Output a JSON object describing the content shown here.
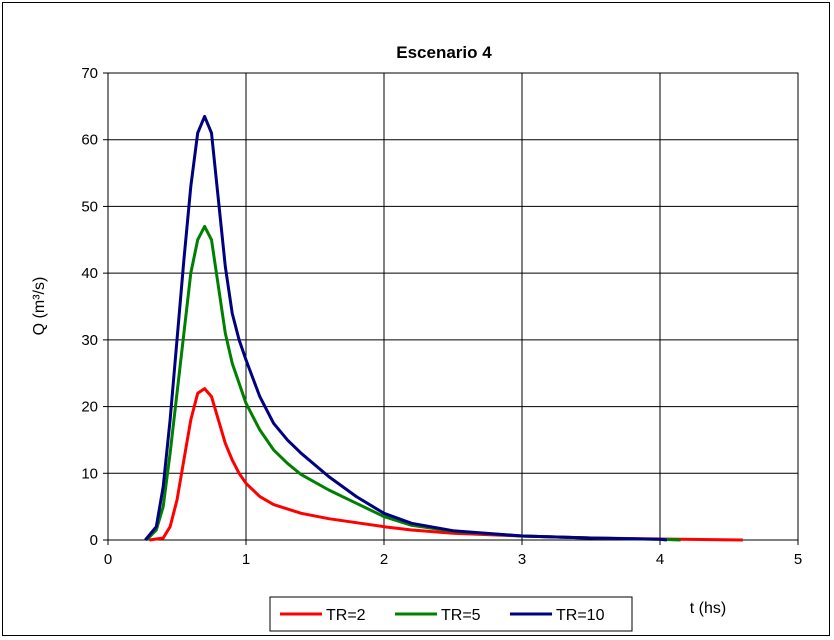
{
  "chart_data": {
    "type": "line",
    "title": "Escenario 4",
    "xlabel": "t (hs)",
    "ylabel": "Q (m³/s)",
    "xlim": [
      0,
      5
    ],
    "ylim": [
      0,
      70
    ],
    "x_ticks": [
      "0",
      "1",
      "2",
      "3",
      "4",
      "5"
    ],
    "y_ticks": [
      "0",
      "10",
      "20",
      "30",
      "40",
      "50",
      "60",
      "70"
    ],
    "grid": true,
    "legend_position": "bottom",
    "series": [
      {
        "name": "TR=2",
        "color": "#ff0000",
        "points": [
          [
            0.3,
            0
          ],
          [
            0.4,
            0.3
          ],
          [
            0.45,
            2
          ],
          [
            0.5,
            6
          ],
          [
            0.55,
            12
          ],
          [
            0.6,
            18
          ],
          [
            0.65,
            22
          ],
          [
            0.7,
            22.7
          ],
          [
            0.75,
            21.5
          ],
          [
            0.8,
            18
          ],
          [
            0.85,
            14.5
          ],
          [
            0.9,
            12
          ],
          [
            0.95,
            10
          ],
          [
            1.0,
            8.5
          ],
          [
            1.1,
            6.5
          ],
          [
            1.2,
            5.3
          ],
          [
            1.4,
            4
          ],
          [
            1.6,
            3.2
          ],
          [
            1.8,
            2.6
          ],
          [
            2.0,
            2
          ],
          [
            2.2,
            1.5
          ],
          [
            2.5,
            1
          ],
          [
            3.0,
            0.6
          ],
          [
            3.5,
            0.3
          ],
          [
            4.0,
            0.15
          ],
          [
            4.6,
            0
          ]
        ]
      },
      {
        "name": "TR=5",
        "color": "#008000",
        "points": [
          [
            0.28,
            0
          ],
          [
            0.35,
            1.5
          ],
          [
            0.4,
            5
          ],
          [
            0.45,
            13
          ],
          [
            0.5,
            22
          ],
          [
            0.55,
            31
          ],
          [
            0.6,
            40
          ],
          [
            0.65,
            45
          ],
          [
            0.7,
            47
          ],
          [
            0.75,
            45
          ],
          [
            0.8,
            38
          ],
          [
            0.85,
            31
          ],
          [
            0.9,
            26.5
          ],
          [
            0.95,
            23.5
          ],
          [
            1.0,
            20.5
          ],
          [
            1.1,
            16.5
          ],
          [
            1.2,
            13.5
          ],
          [
            1.3,
            11.5
          ],
          [
            1.4,
            9.8
          ],
          [
            1.6,
            7.5
          ],
          [
            1.8,
            5.5
          ],
          [
            2.0,
            3.5
          ],
          [
            2.2,
            2.2
          ],
          [
            2.5,
            1.3
          ],
          [
            3.0,
            0.6
          ],
          [
            3.5,
            0.3
          ],
          [
            4.0,
            0.1
          ],
          [
            4.15,
            0
          ]
        ]
      },
      {
        "name": "TR=10",
        "color": "#000080",
        "points": [
          [
            0.27,
            0
          ],
          [
            0.35,
            2
          ],
          [
            0.4,
            8
          ],
          [
            0.45,
            18
          ],
          [
            0.5,
            30
          ],
          [
            0.55,
            42
          ],
          [
            0.6,
            53
          ],
          [
            0.65,
            61
          ],
          [
            0.7,
            63.5
          ],
          [
            0.75,
            61
          ],
          [
            0.8,
            51
          ],
          [
            0.85,
            41
          ],
          [
            0.9,
            34
          ],
          [
            0.95,
            30
          ],
          [
            1.0,
            27
          ],
          [
            1.1,
            21.5
          ],
          [
            1.2,
            17.5
          ],
          [
            1.3,
            15
          ],
          [
            1.4,
            13
          ],
          [
            1.6,
            9.5
          ],
          [
            1.8,
            6.5
          ],
          [
            2.0,
            4
          ],
          [
            2.2,
            2.5
          ],
          [
            2.5,
            1.4
          ],
          [
            3.0,
            0.6
          ],
          [
            3.5,
            0.3
          ],
          [
            4.0,
            0.1
          ],
          [
            4.05,
            0
          ]
        ]
      }
    ]
  }
}
